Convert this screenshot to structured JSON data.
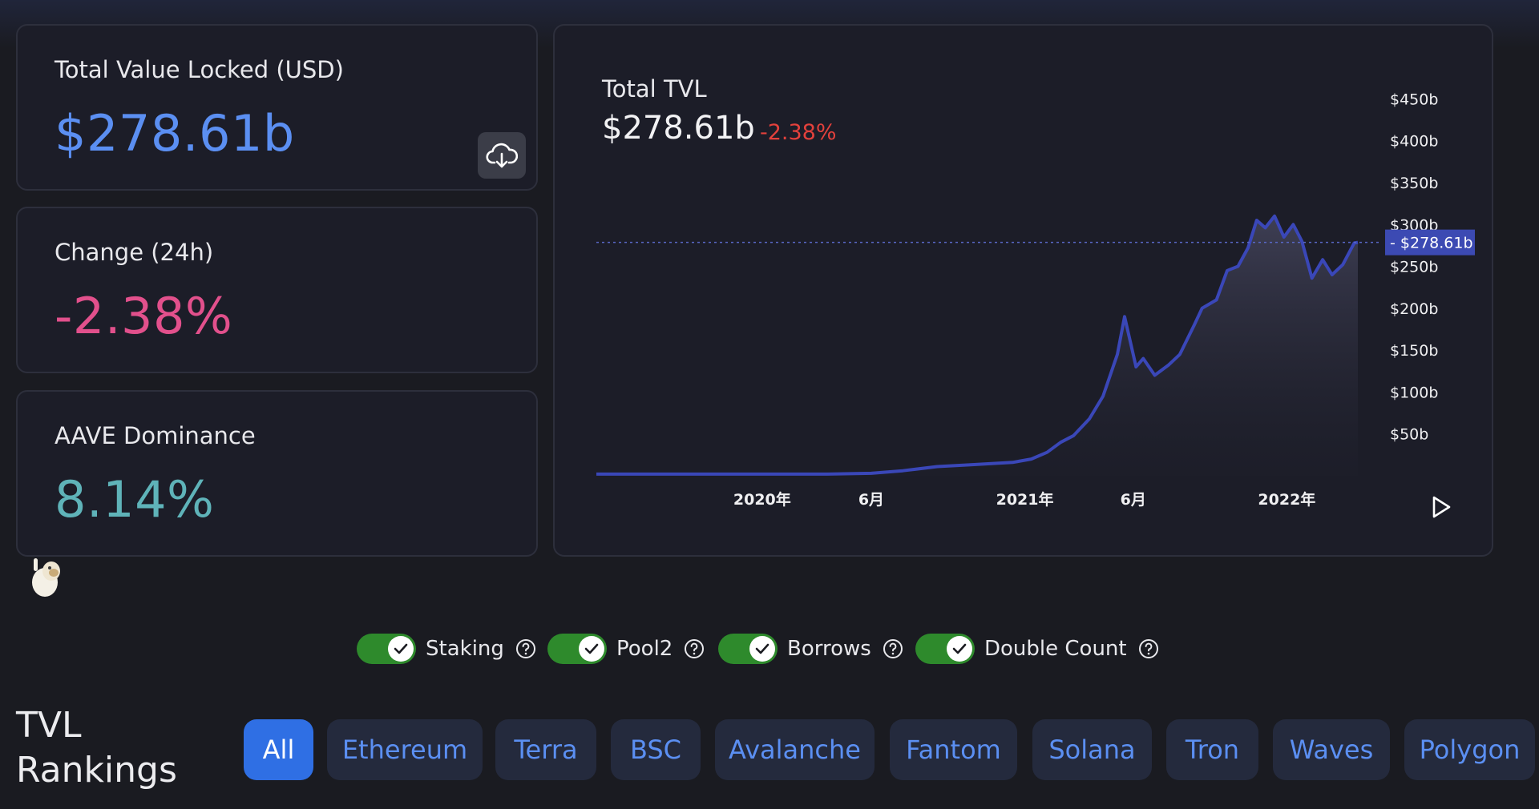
{
  "cards": {
    "tvl": {
      "label": "Total Value Locked (USD)",
      "value": "$278.61b",
      "value_color": "#5b8ff2"
    },
    "change": {
      "label": "Change (24h)",
      "value": "-2.38%",
      "value_color": "#e2508c"
    },
    "dominance": {
      "label": "AAVE Dominance",
      "value": "8.14%",
      "value_color": "#5fb3b9"
    }
  },
  "download_icon": "cloud-download-icon",
  "chart_data": {
    "type": "area",
    "title": "Total TVL",
    "headline_value": "$278.61b",
    "headline_change": "-2.38%",
    "current_value_label": "$278.61b",
    "y_tick_labels": [
      "$50b",
      "$100b",
      "$150b",
      "$200b",
      "$250b",
      "$300b",
      "$350b",
      "$400b",
      "$450b"
    ],
    "y_ticks": [
      50,
      100,
      150,
      200,
      250,
      300,
      350,
      400,
      450
    ],
    "x_tick_labels": [
      "2020年",
      "6月",
      "2021年",
      "6月",
      "2022年"
    ],
    "x_ticks": [
      "2020-01-01",
      "2020-06-01",
      "2021-01-01",
      "2021-06-01",
      "2022-01-01"
    ],
    "xlim": [
      "2019-05-15",
      "2022-04-10"
    ],
    "ylim": [
      0,
      480
    ],
    "current_value": 278.61,
    "grid": false,
    "line_color": "#3a47b8",
    "series": [
      {
        "x": [
          "2019-05-15",
          "2019-09-01",
          "2020-01-01",
          "2020-04-01",
          "2020-06-01",
          "2020-07-15",
          "2020-09-01",
          "2020-10-15",
          "2020-12-15",
          "2021-01-10",
          "2021-02-01",
          "2021-02-20",
          "2021-03-10",
          "2021-04-01",
          "2021-04-20",
          "2021-05-10",
          "2021-05-20",
          "2021-06-05",
          "2021-06-15",
          "2021-07-01",
          "2021-07-20",
          "2021-08-05",
          "2021-08-25",
          "2021-09-05",
          "2021-09-25",
          "2021-10-10",
          "2021-10-25",
          "2021-11-08",
          "2021-11-20",
          "2021-12-02",
          "2021-12-15",
          "2021-12-28",
          "2022-01-10",
          "2022-01-22",
          "2022-02-05",
          "2022-02-20",
          "2022-03-05",
          "2022-03-20",
          "2022-04-05",
          "2022-04-10"
        ],
        "values": [
          2,
          2,
          2,
          2,
          3,
          6,
          11,
          13,
          16,
          20,
          28,
          40,
          48,
          68,
          95,
          145,
          190,
          130,
          140,
          120,
          132,
          145,
          180,
          200,
          210,
          245,
          250,
          272,
          305,
          296,
          310,
          285,
          300,
          280,
          236,
          258,
          240,
          252,
          278,
          278.61
        ]
      }
    ]
  },
  "toggles": [
    {
      "label": "Staking",
      "on": true
    },
    {
      "label": "Pool2",
      "on": true
    },
    {
      "label": "Borrows",
      "on": true
    },
    {
      "label": "Double Count",
      "on": true
    }
  ],
  "rankings": {
    "title_line1": "TVL",
    "title_line2": "Rankings",
    "chains": [
      "All",
      "Ethereum",
      "Terra",
      "BSC",
      "Avalanche",
      "Fantom",
      "Solana",
      "Tron",
      "Waves",
      "Polygon"
    ],
    "active": "All"
  }
}
